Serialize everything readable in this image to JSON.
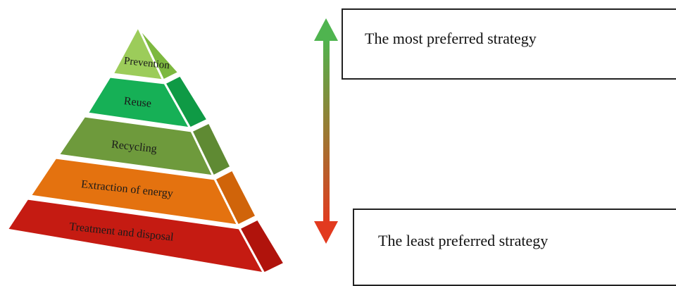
{
  "pyramid": {
    "tiers": [
      {
        "label": "Prevention",
        "front": "#9ccc5a",
        "side": "#7db83f"
      },
      {
        "label": "Reuse",
        "front": "#16b056",
        "side": "#0f9a45"
      },
      {
        "label": "Recycling",
        "front": "#6e9a3c",
        "side": "#5f8a33"
      },
      {
        "label": "Extraction of energy",
        "front": "#e4720f",
        "side": "#d0640a"
      },
      {
        "label": "Treatment and disposal",
        "front": "#c51b12",
        "side": "#b0130c"
      }
    ]
  },
  "arrow": {
    "top_color": "#4fb44f",
    "bottom_color": "#e23a1f",
    "icon": "double-headed-vertical-arrow-icon"
  },
  "labels": {
    "most": "The most preferred strategy",
    "least": "The least preferred strategy"
  }
}
